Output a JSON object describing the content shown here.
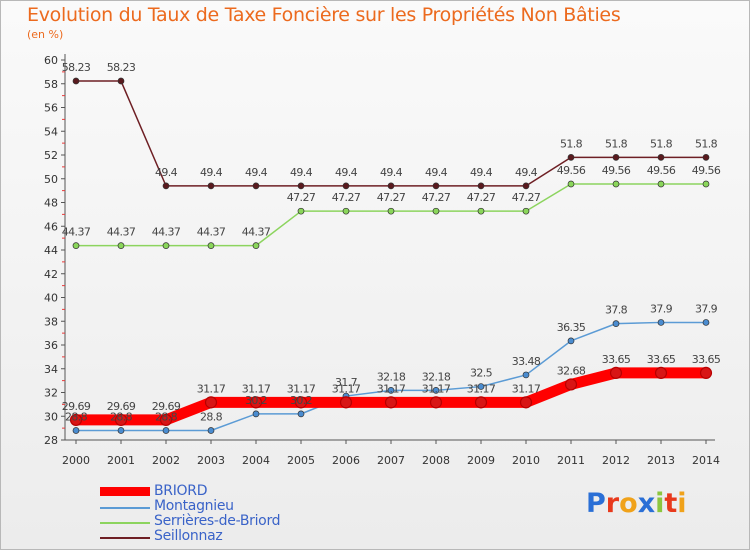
{
  "title": "Evolution du Taux de Taxe Foncière sur les Propriétés Non Bâties",
  "unit_label": "(en %)",
  "logo": "Proxiti",
  "logo_colors": [
    "#2a6fd6",
    "#e8391c",
    "#f0a21a",
    "#2a6fd6",
    "#8cc63f",
    "#e8391c",
    "#f0a21a"
  ],
  "chart_data": {
    "type": "line",
    "x": [
      2000,
      2001,
      2002,
      2003,
      2004,
      2005,
      2006,
      2007,
      2008,
      2009,
      2010,
      2011,
      2012,
      2013,
      2014
    ],
    "ylim": [
      28,
      60
    ],
    "yticks": [
      28,
      30,
      32,
      34,
      36,
      38,
      40,
      42,
      44,
      46,
      48,
      50,
      52,
      54,
      56,
      58,
      60
    ],
    "grid": false,
    "legend": "bottom-left",
    "series": [
      {
        "name": "Seillonnaz",
        "color": "#6e1f24",
        "values": [
          58.23,
          58.23,
          49.4,
          49.4,
          49.4,
          49.4,
          49.4,
          49.4,
          49.4,
          49.4,
          49.4,
          51.8,
          51.8,
          51.8,
          51.8
        ],
        "labels": [
          "58.23",
          "58.23",
          "49.4",
          "49.4",
          "49.4",
          "49.4",
          "49.4",
          "49.4",
          "49.4",
          "49.4",
          "49.4",
          "51.8",
          "51.8",
          "51.8",
          "51.8"
        ]
      },
      {
        "name": "Serrières-de-Briord",
        "color": "#8cd45e",
        "values": [
          44.37,
          44.37,
          44.37,
          44.37,
          44.37,
          47.27,
          47.27,
          47.27,
          47.27,
          47.27,
          47.27,
          49.56,
          49.56,
          49.56,
          49.56
        ],
        "labels": [
          "44.37",
          "44.37",
          "44.37",
          "44.37",
          "44.37",
          "47.27",
          "47.27",
          "47.27",
          "47.27",
          "47.27",
          "47.27",
          "49.56",
          "49.56",
          "49.56",
          "49.56"
        ]
      },
      {
        "name": "Montagnieu",
        "color": "#5b9bd5",
        "values": [
          28.8,
          28.8,
          28.8,
          28.8,
          30.2,
          30.2,
          31.7,
          32.18,
          32.18,
          32.5,
          33.48,
          36.35,
          37.8,
          37.9,
          37.9
        ],
        "labels": [
          "28.8",
          "28.8",
          "28.8",
          "28.8",
          "30.2",
          "30.2",
          "31.7",
          "32.18",
          "32.18",
          "32.5",
          "33.48",
          "36.35",
          "37.8",
          "37.9",
          "37.9"
        ]
      },
      {
        "name": "BRIORD",
        "color": "#ff0000",
        "values": [
          29.69,
          29.69,
          29.69,
          31.17,
          31.17,
          31.17,
          31.17,
          31.17,
          31.17,
          31.17,
          31.17,
          32.68,
          33.65,
          33.65,
          33.65
        ],
        "labels": [
          "29.69",
          "29.69",
          "29.69",
          "31.17",
          "31.17",
          "31.17",
          "31.17",
          "31.17",
          "31.17",
          "31.17",
          "31.17",
          "32.68",
          "33.65",
          "33.65",
          "33.65"
        ]
      }
    ]
  },
  "legend_items": [
    {
      "label": "BRIORD",
      "color": "#ff0000",
      "thick": true
    },
    {
      "label": "Montagnieu",
      "color": "#5b9bd5",
      "thick": false
    },
    {
      "label": "Serrières-de-Briord",
      "color": "#8cd45e",
      "thick": false
    },
    {
      "label": "Seillonnaz",
      "color": "#6e1f24",
      "thick": false
    }
  ]
}
